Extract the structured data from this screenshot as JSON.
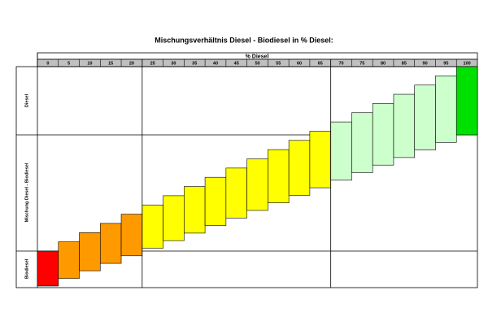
{
  "title": "Mischungsverhältnis Diesel - Biodiesel in % Diesel:",
  "header": "% Diesel",
  "row_labels": [
    "Diesel",
    "Mischung Diesel - Biodiesel",
    "Biodiesel"
  ],
  "columns": {
    "values": [
      0,
      5,
      10,
      15,
      20,
      25,
      30,
      35,
      40,
      45,
      50,
      55,
      60,
      65,
      70,
      75,
      80,
      85,
      90,
      95,
      100
    ],
    "colors": [
      "#ff0000",
      "#ff9900",
      "#ff9900",
      "#ff9900",
      "#ff9900",
      "#ffff00",
      "#ffff00",
      "#ffff00",
      "#ffff00",
      "#ffff00",
      "#ffff00",
      "#ffff00",
      "#ffff00",
      "#ffff00",
      "#ccffcc",
      "#ccffcc",
      "#ccffcc",
      "#ccffcc",
      "#ccffcc",
      "#ccffcc",
      "#00e000"
    ]
  }
}
